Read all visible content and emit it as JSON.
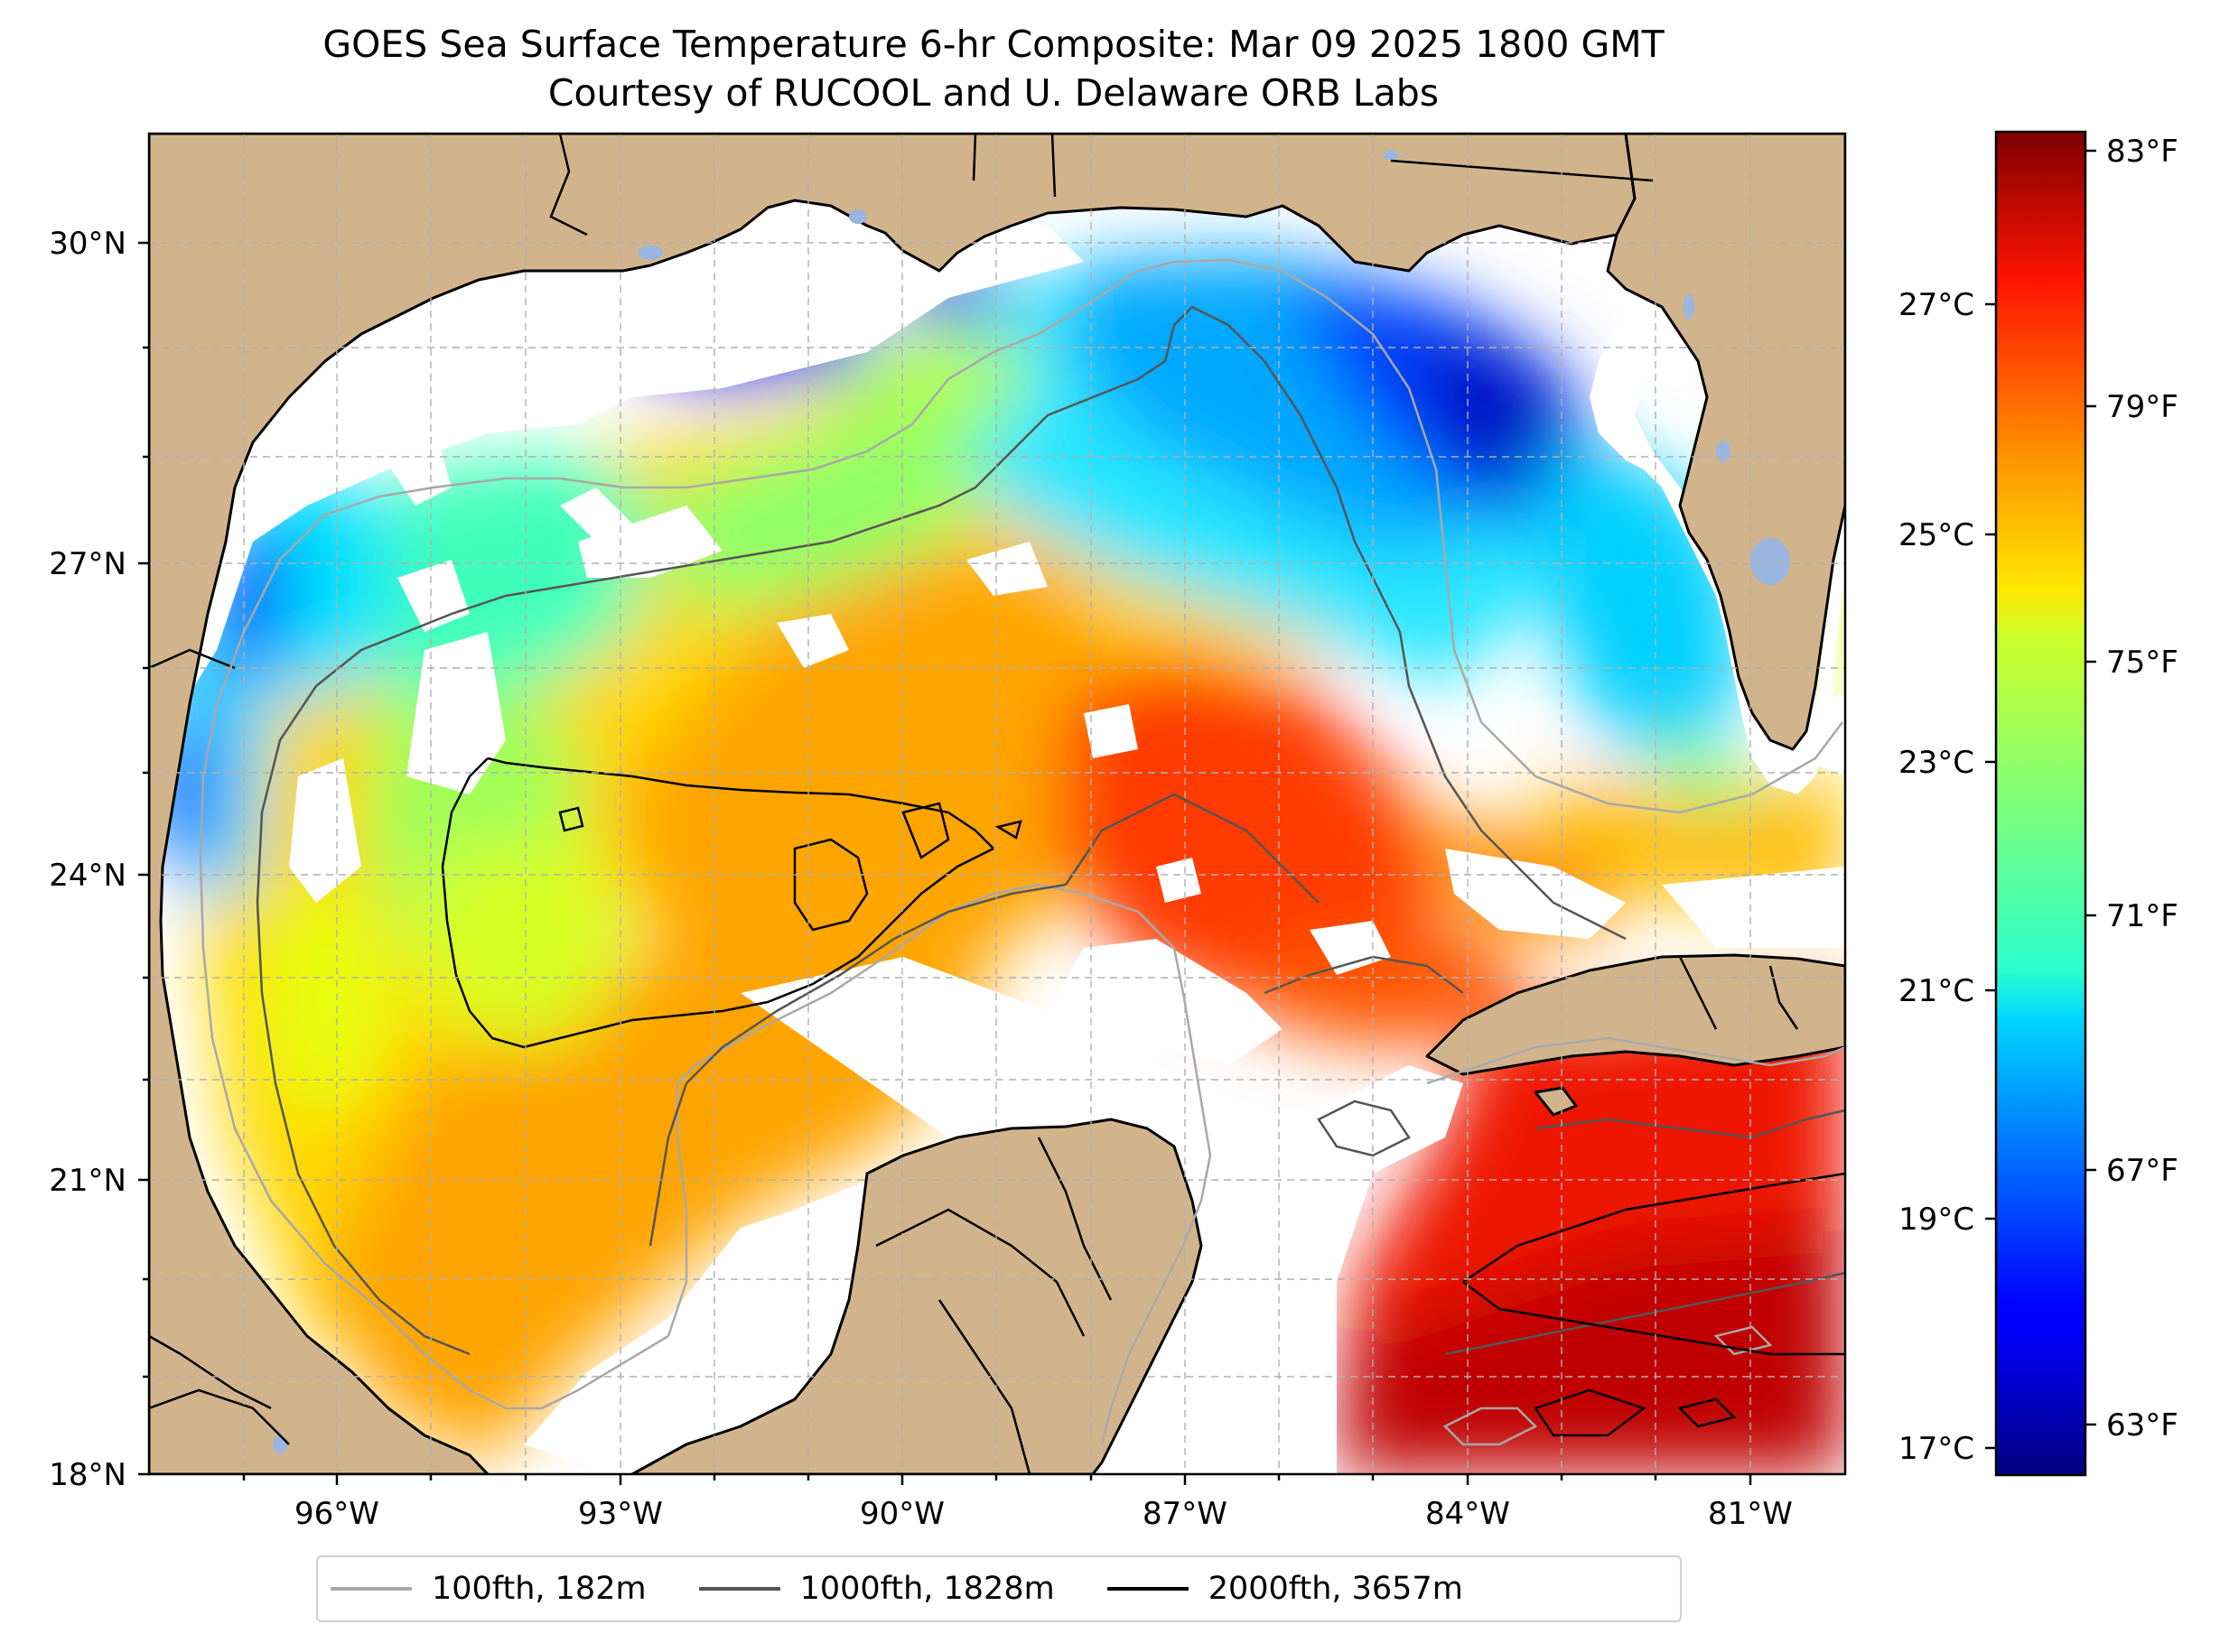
{
  "title": {
    "line1": "GOES Sea Surface Temperature 6-hr Composite: Mar 09 2025 1800 GMT",
    "line2": "Courtesy of RUCOOL and U. Delaware ORB Labs"
  },
  "axes": {
    "lat_labels": [
      "30°N",
      "27°N",
      "24°N",
      "21°N",
      "18°N"
    ],
    "lon_labels": [
      "96°W",
      "93°W",
      "90°W",
      "87°W",
      "84°W",
      "81°W"
    ],
    "lon_range": [
      -98,
      -80
    ],
    "lat_range": [
      18,
      31
    ]
  },
  "colorbar": {
    "colormap": "jet",
    "celsius_labels": [
      "27°C",
      "25°C",
      "23°C",
      "21°C",
      "19°C",
      "17°C"
    ],
    "fahrenheit_labels": [
      "83°F",
      "79°F",
      "75°F",
      "71°F",
      "67°F",
      "63°F"
    ],
    "range_f": [
      62,
      83.5
    ]
  },
  "legend": {
    "items": [
      {
        "label": "100fth, 182m",
        "color": "#a8a8a8"
      },
      {
        "label": "1000fth, 1828m",
        "color": "#555555"
      },
      {
        "label": "2000fth, 3657m",
        "color": "#000000"
      }
    ]
  },
  "colors": {
    "land": "#d2b48c",
    "no_data": "#ffffff",
    "grid": "#b0b0b0",
    "lakes": "#9ab5e0"
  }
}
